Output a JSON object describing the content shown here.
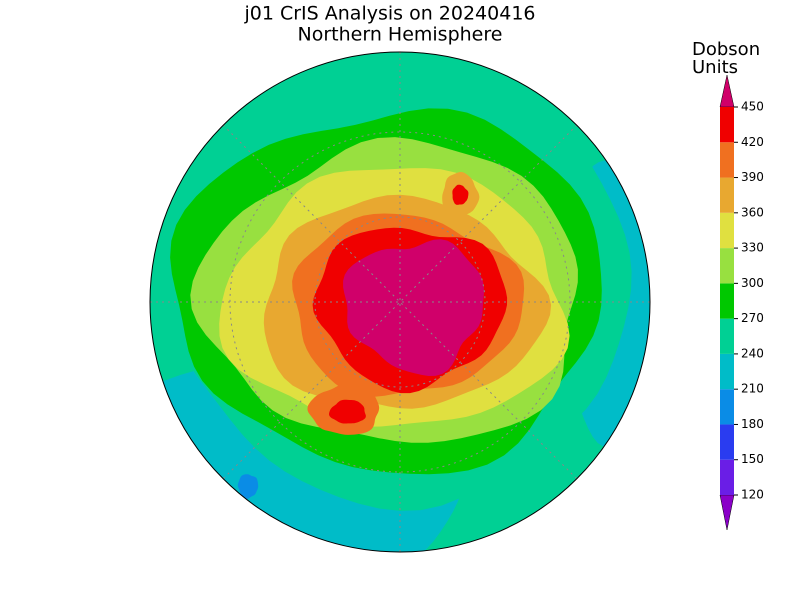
{
  "title": "j01 CrIS Analysis on 20240416",
  "subtitle": "Northern Hemisphere",
  "colorbar": {
    "label": [
      "Dobson",
      "Units"
    ],
    "ticks": [
      120,
      150,
      180,
      210,
      240,
      270,
      300,
      330,
      360,
      390,
      420,
      450
    ],
    "colors": [
      "#8a00c8",
      "#6a1ee6",
      "#2a3cf0",
      "#0a8ce6",
      "#00bcc8",
      "#00d094",
      "#00c800",
      "#98e040",
      "#e0e040",
      "#e8a830",
      "#f07020",
      "#f00000",
      "#d0006a"
    ]
  }
}
